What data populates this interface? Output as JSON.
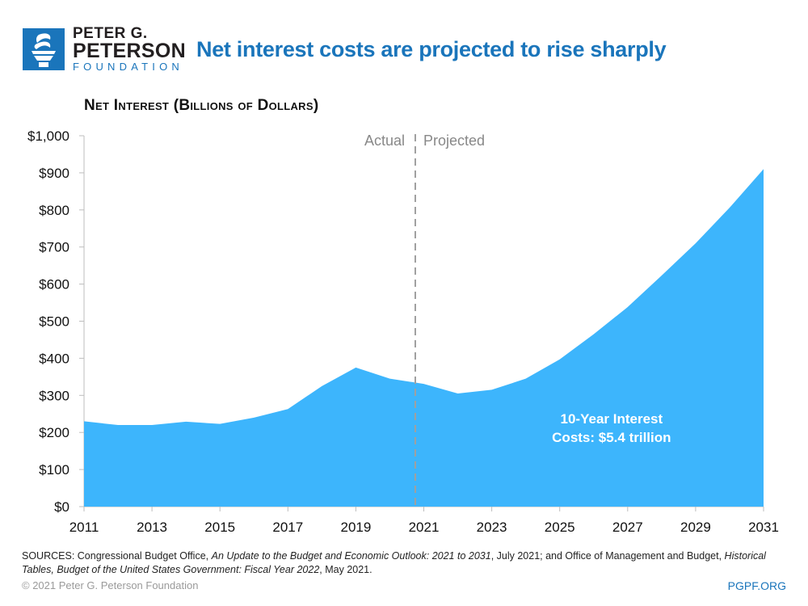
{
  "header": {
    "logo": {
      "icon": "torch-icon",
      "line1": "PETER G.",
      "line2": "PETERSON",
      "line3": "FOUNDATION"
    },
    "title": "Net interest costs are projected to rise sharply"
  },
  "colors": {
    "brand_blue": "#1a75bb",
    "area_fill": "#3db5fc",
    "divider": "#a0a0a0"
  },
  "chart_data": {
    "type": "area",
    "title": "Net interest costs are projected to rise sharply",
    "subtitle": "Net Interest (Billions of Dollars)",
    "xlabel": "",
    "ylabel": "Net Interest (Billions of Dollars)",
    "x": [
      2011,
      2012,
      2013,
      2014,
      2015,
      2016,
      2017,
      2018,
      2019,
      2020,
      2021,
      2022,
      2023,
      2024,
      2025,
      2026,
      2027,
      2028,
      2029,
      2030,
      2031
    ],
    "series": [
      {
        "name": "Net Interest",
        "values": [
          230,
          220,
          220,
          229,
          223,
          240,
          263,
          325,
          375,
          345,
          331,
          305,
          315,
          345,
          397,
          465,
          538,
          623,
          710,
          806,
          910
        ]
      }
    ],
    "xlim": [
      2011,
      2031
    ],
    "ylim": [
      0,
      1000
    ],
    "x_ticks": [
      "2011",
      "2013",
      "2015",
      "2017",
      "2019",
      "2021",
      "2023",
      "2025",
      "2027",
      "2029",
      "2031"
    ],
    "y_ticks": [
      "$0",
      "$100",
      "$200",
      "$300",
      "$400",
      "$500",
      "$600",
      "$700",
      "$800",
      "$900",
      "$1,000"
    ],
    "y_tick_values": [
      0,
      100,
      200,
      300,
      400,
      500,
      600,
      700,
      800,
      900,
      1000
    ],
    "divider": {
      "x": 2020.75,
      "left_label": "Actual",
      "right_label": "Projected"
    },
    "annotation": {
      "line1": "10-Year Interest",
      "line2": "Costs: $5.4 trillion"
    },
    "grid": false,
    "legend": "none"
  },
  "footer": {
    "sources_prefix": "SOURCES: Congressional Budget Office, ",
    "sources_title1": "An Update to the Budget and Economic Outlook: 2021 to 2031",
    "sources_mid": ", July 2021; and Office of Management and Budget, ",
    "sources_title2": "Historical Tables, Budget of the United States Government: Fiscal Year 2022",
    "sources_suffix": ", May 2021.",
    "copyright": "© 2021 Peter G. Peterson Foundation",
    "site": "PGPF.ORG"
  }
}
